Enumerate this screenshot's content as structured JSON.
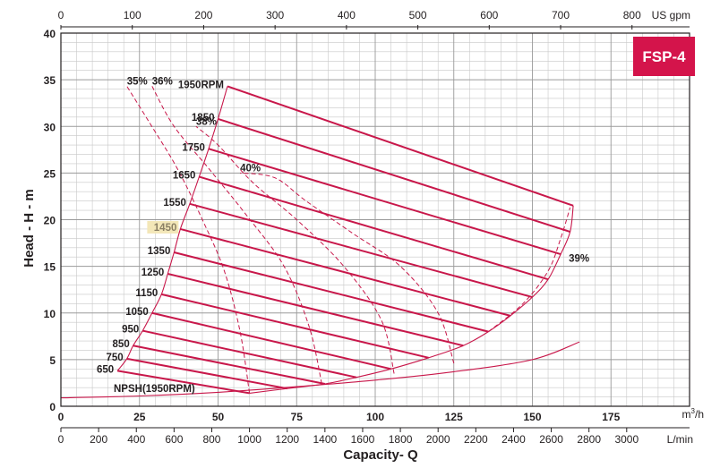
{
  "chart_data": {
    "type": "line",
    "model_badge": "FSP-4",
    "title": "",
    "xlabel": "Capacity- Q",
    "ylabel": "Head - H - m",
    "x_unit_m3h": "m3/h",
    "x_unit_lmin": "L/min",
    "x_unit_usgpm": "US gpm",
    "xlim_m3h": [
      0,
      200
    ],
    "ylim": [
      0,
      40
    ],
    "x_ticks_m3h": [
      "0",
      "25",
      "50",
      "75",
      "100",
      "125",
      "150",
      "175"
    ],
    "x_ticks_lmin": [
      "0",
      "200",
      "400",
      "600",
      "800",
      "1000",
      "1200",
      "1400",
      "1600",
      "1800",
      "2000",
      "2200",
      "2400",
      "2600",
      "2800",
      "3000"
    ],
    "x_ticks_usgpm": [
      "0",
      "100",
      "200",
      "300",
      "400",
      "500",
      "600",
      "700",
      "800"
    ],
    "y_ticks": [
      "0",
      "5",
      "10",
      "15",
      "20",
      "25",
      "30",
      "35",
      "40"
    ],
    "grid": true,
    "series": [
      {
        "name": "1950RPM",
        "x": [
          53,
          163
        ],
        "y": [
          34.3,
          21.5
        ]
      },
      {
        "name": "1850",
        "x": [
          50,
          162
        ],
        "y": [
          30.8,
          18.7
        ]
      },
      {
        "name": "1750",
        "x": [
          47,
          159
        ],
        "y": [
          27.6,
          16.3
        ]
      },
      {
        "name": "1650",
        "x": [
          44,
          155
        ],
        "y": [
          24.6,
          13.6
        ]
      },
      {
        "name": "1550",
        "x": [
          41,
          150
        ],
        "y": [
          21.7,
          11.7
        ]
      },
      {
        "name": "1450",
        "x": [
          38,
          143
        ],
        "y": [
          19.0,
          9.7
        ]
      },
      {
        "name": "1350",
        "x": [
          36,
          136
        ],
        "y": [
          16.5,
          8.0
        ]
      },
      {
        "name": "1250",
        "x": [
          34,
          128
        ],
        "y": [
          14.2,
          6.5
        ]
      },
      {
        "name": "1150",
        "x": [
          32,
          117
        ],
        "y": [
          12.0,
          5.2
        ]
      },
      {
        "name": "1050",
        "x": [
          29,
          105
        ],
        "y": [
          10.0,
          4.0
        ]
      },
      {
        "name": "950",
        "x": [
          26,
          94
        ],
        "y": [
          8.1,
          3.1
        ]
      },
      {
        "name": "850",
        "x": [
          23,
          84
        ],
        "y": [
          6.5,
          2.4
        ]
      },
      {
        "name": "750",
        "x": [
          21,
          72
        ],
        "y": [
          5.1,
          1.9
        ]
      },
      {
        "name": "650",
        "x": [
          18,
          60
        ],
        "y": [
          3.8,
          1.4
        ]
      }
    ],
    "highlighted_series": "1450",
    "npsh": {
      "name": "NPSH(1950RPM)",
      "x": [
        0,
        25,
        50,
        75,
        100,
        125,
        150,
        165
      ],
      "y": [
        0.9,
        1.1,
        1.5,
        2.1,
        2.8,
        3.7,
        5.0,
        6.9
      ]
    },
    "efficiency_curves": [
      {
        "name": "35%",
        "x": [
          60,
          57,
          52,
          45,
          37,
          28,
          21
        ],
        "y": [
          1.4,
          8.0,
          14.5,
          20.0,
          25.5,
          30.5,
          34.3
        ]
      },
      {
        "name": "36%",
        "x": [
          83,
          79,
          71,
          59,
          47,
          36,
          29
        ],
        "y": [
          2.4,
          8.5,
          15.0,
          20.5,
          25.5,
          30.0,
          34.3
        ]
      },
      {
        "name": "38%",
        "x": [
          106,
          102,
          90,
          75,
          61,
          50,
          43
        ],
        "y": [
          3.5,
          9.2,
          15.0,
          20.0,
          24.0,
          28.0,
          30.0
        ]
      },
      {
        "name": "40%",
        "x": [
          125,
          120,
          108,
          93,
          78,
          68,
          57
        ],
        "y": [
          4.6,
          10.0,
          15.0,
          18.5,
          22.0,
          24.5,
          25.0
        ]
      },
      {
        "name": "39%",
        "x": [
          136,
          147,
          155,
          159,
          162
        ],
        "y": [
          8.0,
          11.0,
          14.5,
          18.0,
          21.3
        ]
      }
    ]
  }
}
